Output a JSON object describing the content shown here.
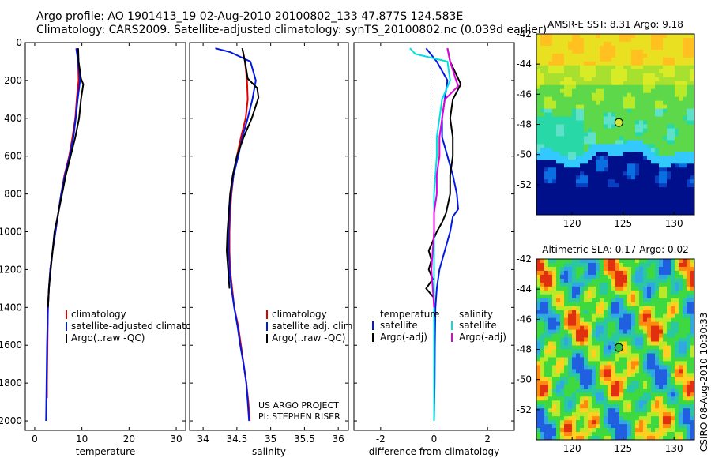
{
  "header": {
    "line1": "Argo profile: AO 1901413_19 02-Aug-2010 20100802_133 47.877S 124.583E",
    "line2": "Climatology: CARS2009. Satellite-adjusted climatology: synTS_20100802.nc (0.039d earlier)"
  },
  "side_stamp": "CSIRO 08-Aug-2010 10:30:33",
  "colors": {
    "red": "#e00000",
    "blue": "#0018e6",
    "black": "#000000",
    "cyan": "#00e0e0",
    "magenta": "#e000e0"
  },
  "footer_note": {
    "line1": "US ARGO PROJECT",
    "line2": "PI: STEPHEN RISER"
  },
  "chart_data": [
    {
      "id": "temperature",
      "type": "line",
      "xlabel": "temperature",
      "ylim": [
        2050,
        0
      ],
      "xlim": [
        -2,
        32
      ],
      "xticks": [
        0,
        10,
        20,
        30
      ],
      "yticks": [
        0,
        200,
        400,
        600,
        800,
        1000,
        1200,
        1400,
        1600,
        1800,
        2000
      ],
      "legend": [
        "climatology",
        "satellite-adjusted climatolog",
        "Argo(..raw -QC)"
      ],
      "series": [
        {
          "name": "climatology",
          "color": "red",
          "points": [
            [
              9.0,
              30
            ],
            [
              9.2,
              100
            ],
            [
              9.3,
              200
            ],
            [
              8.9,
              300
            ],
            [
              8.6,
              400
            ],
            [
              8.0,
              500
            ],
            [
              7.3,
              600
            ],
            [
              6.3,
              700
            ],
            [
              5.6,
              800
            ],
            [
              5.0,
              900
            ],
            [
              4.4,
              1000
            ],
            [
              3.8,
              1100
            ],
            [
              3.3,
              1200
            ],
            [
              3.0,
              1300
            ],
            [
              2.8,
              1400
            ],
            [
              2.7,
              1600
            ],
            [
              2.6,
              1800
            ],
            [
              2.6,
              1880
            ]
          ]
        },
        {
          "name": "satellite-adjusted climatolog",
          "color": "blue",
          "points": [
            [
              8.8,
              30
            ],
            [
              9.2,
              100
            ],
            [
              9.6,
              200
            ],
            [
              9.1,
              300
            ],
            [
              8.7,
              400
            ],
            [
              8.2,
              500
            ],
            [
              7.4,
              600
            ],
            [
              6.4,
              700
            ],
            [
              5.6,
              800
            ],
            [
              5.0,
              900
            ],
            [
              4.4,
              1000
            ],
            [
              3.8,
              1100
            ],
            [
              3.3,
              1200
            ],
            [
              3.0,
              1300
            ],
            [
              2.8,
              1400
            ],
            [
              2.6,
              1600
            ],
            [
              2.5,
              1800
            ],
            [
              2.4,
              2000
            ]
          ]
        },
        {
          "name": "Argo(..raw -QC)",
          "color": "black",
          "points": [
            [
              9.2,
              30
            ],
            [
              9.3,
              100
            ],
            [
              9.8,
              190
            ],
            [
              10.3,
              220
            ],
            [
              9.8,
              300
            ],
            [
              9.4,
              400
            ],
            [
              8.6,
              500
            ],
            [
              7.6,
              600
            ],
            [
              6.6,
              700
            ],
            [
              5.8,
              800
            ],
            [
              5.0,
              900
            ],
            [
              4.2,
              1000
            ],
            [
              3.8,
              1100
            ],
            [
              3.4,
              1200
            ],
            [
              3.0,
              1300
            ],
            [
              2.8,
              1400
            ]
          ]
        }
      ]
    },
    {
      "id": "salinity",
      "type": "line",
      "xlabel": "salinity",
      "ylim": [
        2050,
        0
      ],
      "xlim": [
        33.8,
        36.15
      ],
      "xticks": [
        34,
        34.5,
        35,
        35.5,
        36
      ],
      "xticklabels": [
        "34",
        "34.5",
        "35",
        "35.5",
        "36"
      ],
      "legend": [
        "climatology",
        "satellite adj. clim.",
        "Argo(..raw -QC)"
      ],
      "series": [
        {
          "name": "climatology",
          "color": "red",
          "points": [
            [
              34.58,
              30
            ],
            [
              34.62,
              100
            ],
            [
              34.65,
              200
            ],
            [
              34.66,
              300
            ],
            [
              34.63,
              400
            ],
            [
              34.56,
              500
            ],
            [
              34.5,
              600
            ],
            [
              34.45,
              700
            ],
            [
              34.42,
              800
            ],
            [
              34.4,
              900
            ],
            [
              34.39,
              1000
            ],
            [
              34.39,
              1100
            ],
            [
              34.4,
              1200
            ],
            [
              34.43,
              1300
            ],
            [
              34.46,
              1400
            ],
            [
              34.52,
              1500
            ],
            [
              34.56,
              1600
            ],
            [
              34.6,
              1700
            ],
            [
              34.64,
              1800
            ],
            [
              34.67,
              1900
            ],
            [
              34.69,
              2000
            ]
          ]
        },
        {
          "name": "satellite adj. clim.",
          "color": "blue",
          "points": [
            [
              34.18,
              30
            ],
            [
              34.4,
              50
            ],
            [
              34.7,
              100
            ],
            [
              34.78,
              200
            ],
            [
              34.73,
              300
            ],
            [
              34.66,
              400
            ],
            [
              34.58,
              500
            ],
            [
              34.52,
              600
            ],
            [
              34.45,
              700
            ],
            [
              34.41,
              800
            ],
            [
              34.39,
              900
            ],
            [
              34.38,
              1000
            ],
            [
              34.38,
              1100
            ],
            [
              34.39,
              1200
            ],
            [
              34.42,
              1300
            ],
            [
              34.46,
              1400
            ],
            [
              34.51,
              1500
            ],
            [
              34.55,
              1600
            ],
            [
              34.6,
              1700
            ],
            [
              34.64,
              1800
            ],
            [
              34.66,
              1900
            ],
            [
              34.68,
              2000
            ]
          ]
        },
        {
          "name": "Argo(..raw -QC)",
          "color": "black",
          "points": [
            [
              34.58,
              30
            ],
            [
              34.62,
              100
            ],
            [
              34.66,
              190
            ],
            [
              34.8,
              240
            ],
            [
              34.82,
              290
            ],
            [
              34.72,
              400
            ],
            [
              34.6,
              500
            ],
            [
              34.5,
              600
            ],
            [
              34.44,
              700
            ],
            [
              34.4,
              800
            ],
            [
              34.38,
              900
            ],
            [
              34.36,
              1000
            ],
            [
              34.35,
              1100
            ],
            [
              34.37,
              1200
            ],
            [
              34.39,
              1300
            ]
          ]
        }
      ]
    },
    {
      "id": "difference",
      "type": "line",
      "xlabel": "difference from climatology",
      "ylim": [
        2050,
        0
      ],
      "xlim": [
        -3.0,
        3.0
      ],
      "xticks": [
        -2,
        0,
        2
      ],
      "zero_line": true,
      "legend_groups": [
        {
          "title": "temperature",
          "items": [
            "satellite",
            "Argo(-adj)"
          ]
        },
        {
          "title": "salinity",
          "items": [
            "satellite",
            "Argo(-adj)"
          ]
        }
      ],
      "series": [
        {
          "name": "temperature satellite",
          "color": "blue",
          "points": [
            [
              -0.3,
              30
            ],
            [
              0.1,
              100
            ],
            [
              0.5,
              200
            ],
            [
              0.4,
              300
            ],
            [
              0.3,
              400
            ],
            [
              0.3,
              500
            ],
            [
              0.5,
              600
            ],
            [
              0.7,
              700
            ],
            [
              0.85,
              800
            ],
            [
              0.9,
              880
            ],
            [
              0.7,
              920
            ],
            [
              0.6,
              1000
            ],
            [
              0.4,
              1100
            ],
            [
              0.2,
              1200
            ],
            [
              0.1,
              1300
            ],
            [
              0.05,
              1400
            ],
            [
              0.03,
              1600
            ],
            [
              0.02,
              1800
            ],
            [
              0.0,
              2000
            ]
          ]
        },
        {
          "name": "temperature Argo(-adj)",
          "color": "black",
          "points": [
            [
              0.5,
              30
            ],
            [
              0.6,
              100
            ],
            [
              0.9,
              190
            ],
            [
              1.0,
              220
            ],
            [
              0.7,
              300
            ],
            [
              0.6,
              400
            ],
            [
              0.7,
              500
            ],
            [
              0.7,
              600
            ],
            [
              0.6,
              700
            ],
            [
              0.6,
              800
            ],
            [
              0.45,
              900
            ],
            [
              0.3,
              950
            ],
            [
              0.1,
              1000
            ],
            [
              -0.2,
              1100
            ],
            [
              -0.1,
              1150
            ],
            [
              -0.2,
              1200
            ],
            [
              -0.05,
              1250
            ],
            [
              -0.3,
              1300
            ],
            [
              0.0,
              1350
            ],
            [
              0.0,
              1400
            ]
          ]
        },
        {
          "name": "salinity satellite",
          "color": "cyan",
          "points": [
            [
              -0.9,
              30
            ],
            [
              -0.7,
              60
            ],
            [
              0.5,
              100
            ],
            [
              0.6,
              200
            ],
            [
              0.3,
              300
            ],
            [
              0.2,
              400
            ],
            [
              0.1,
              500
            ],
            [
              0.1,
              600
            ],
            [
              0.0,
              800
            ],
            [
              0.0,
              1000
            ],
            [
              0.0,
              1200
            ],
            [
              0.0,
              1400
            ],
            [
              0.0,
              1600
            ],
            [
              0.0,
              1800
            ],
            [
              0.0,
              2000
            ]
          ]
        },
        {
          "name": "salinity Argo(-adj)",
          "color": "magenta",
          "points": [
            [
              0.5,
              30
            ],
            [
              0.6,
              100
            ],
            [
              0.8,
              190
            ],
            [
              0.9,
              230
            ],
            [
              0.4,
              300
            ],
            [
              0.3,
              400
            ],
            [
              0.2,
              500
            ],
            [
              0.2,
              600
            ],
            [
              0.1,
              700
            ],
            [
              0.1,
              800
            ],
            [
              0.0,
              900
            ],
            [
              0.0,
              1000
            ],
            [
              -0.05,
              1100
            ],
            [
              -0.1,
              1200
            ],
            [
              -0.05,
              1300
            ],
            [
              0.0,
              1400
            ]
          ]
        }
      ]
    },
    {
      "id": "sst_map",
      "type": "heatmap",
      "title": "AMSR-E SST: 8.31  Argo: 9.18",
      "xlim": [
        116.5,
        132
      ],
      "ylim": [
        -54,
        -42
      ],
      "xticks": [
        120,
        125,
        130
      ],
      "yticks": [
        -42,
        -44,
        -46,
        -48,
        -50,
        -52
      ],
      "marker": [
        124.583,
        -47.877
      ]
    },
    {
      "id": "sla_map",
      "type": "heatmap",
      "title": "Altimetric SLA: 0.17  Argo: 0.02",
      "xlim": [
        116.5,
        132
      ],
      "ylim": [
        -54,
        -42
      ],
      "xticks": [
        120,
        125,
        130
      ],
      "yticks": [
        -42,
        -44,
        -46,
        -48,
        -50,
        -52
      ],
      "marker": [
        124.583,
        -47.877
      ]
    }
  ]
}
